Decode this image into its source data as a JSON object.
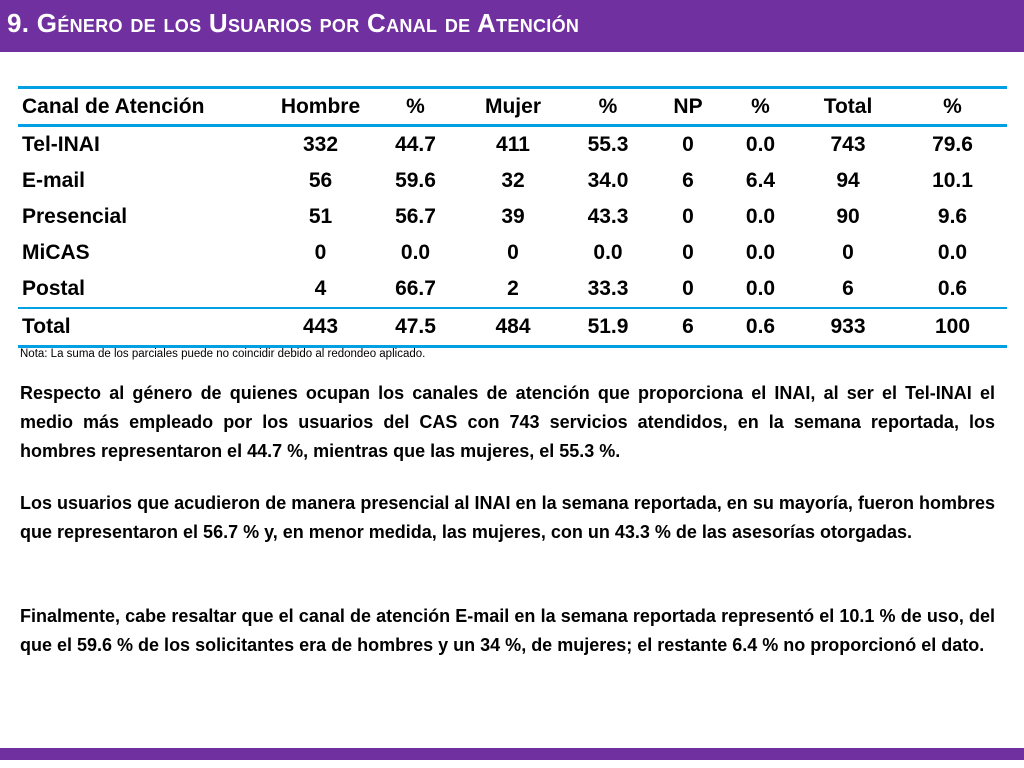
{
  "title": "9. Género de los Usuarios por Canal de Atención",
  "table": {
    "headers": [
      "Canal de Atención",
      "Hombre",
      "%",
      "Mujer",
      "%",
      "NP",
      "%",
      "Total",
      "%"
    ],
    "rows": [
      [
        "Tel-INAI",
        "332",
        "44.7",
        "411",
        "55.3",
        "0",
        "0.0",
        "743",
        "79.6"
      ],
      [
        "E-mail",
        "56",
        "59.6",
        "32",
        "34.0",
        "6",
        "6.4",
        "94",
        "10.1"
      ],
      [
        "Presencial",
        "51",
        "56.7",
        "39",
        "43.3",
        "0",
        "0.0",
        "90",
        "9.6"
      ],
      [
        "MiCAS",
        "0",
        "0.0",
        "0",
        "0.0",
        "0",
        "0.0",
        "0",
        "0.0"
      ],
      [
        "Postal",
        "4",
        "66.7",
        "2",
        "33.3",
        "0",
        "0.0",
        "6",
        "0.6"
      ],
      [
        "Total",
        "443",
        "47.5",
        "484",
        "51.9",
        "6",
        "0.6",
        "933",
        "100"
      ]
    ],
    "note": "Nota: La suma de los parciales puede no coincidir debido al redondeo aplicado."
  },
  "paragraphs": [
    "Respecto al género de quienes ocupan los canales de atención que proporciona el INAI, al ser el Tel-INAI el medio más empleado por los usuarios del CAS con 743 servicios atendidos, en la semana reportada, los hombres representaron el 44.7 %, mientras que las mujeres, el 55.3 %.",
    "Los usuarios que acudieron de manera presencial al INAI en la semana reportada, en su mayoría, fueron hombres que representaron el 56.7 % y, en menor medida, las mujeres, con un 43.3 % de las asesorías otorgadas.",
    "Finalmente, cabe resaltar que el canal de atención E-mail en la semana reportada representó el 10.1 % de uso, del que el 59.6 % de los solicitantes era de hombres y un 34 %, de mujeres; el restante 6.4 % no proporcionó el dato."
  ],
  "colors": {
    "title_bar": "#7030a0",
    "table_rule": "#00a0e3",
    "footer_bar": "#7030a0"
  }
}
